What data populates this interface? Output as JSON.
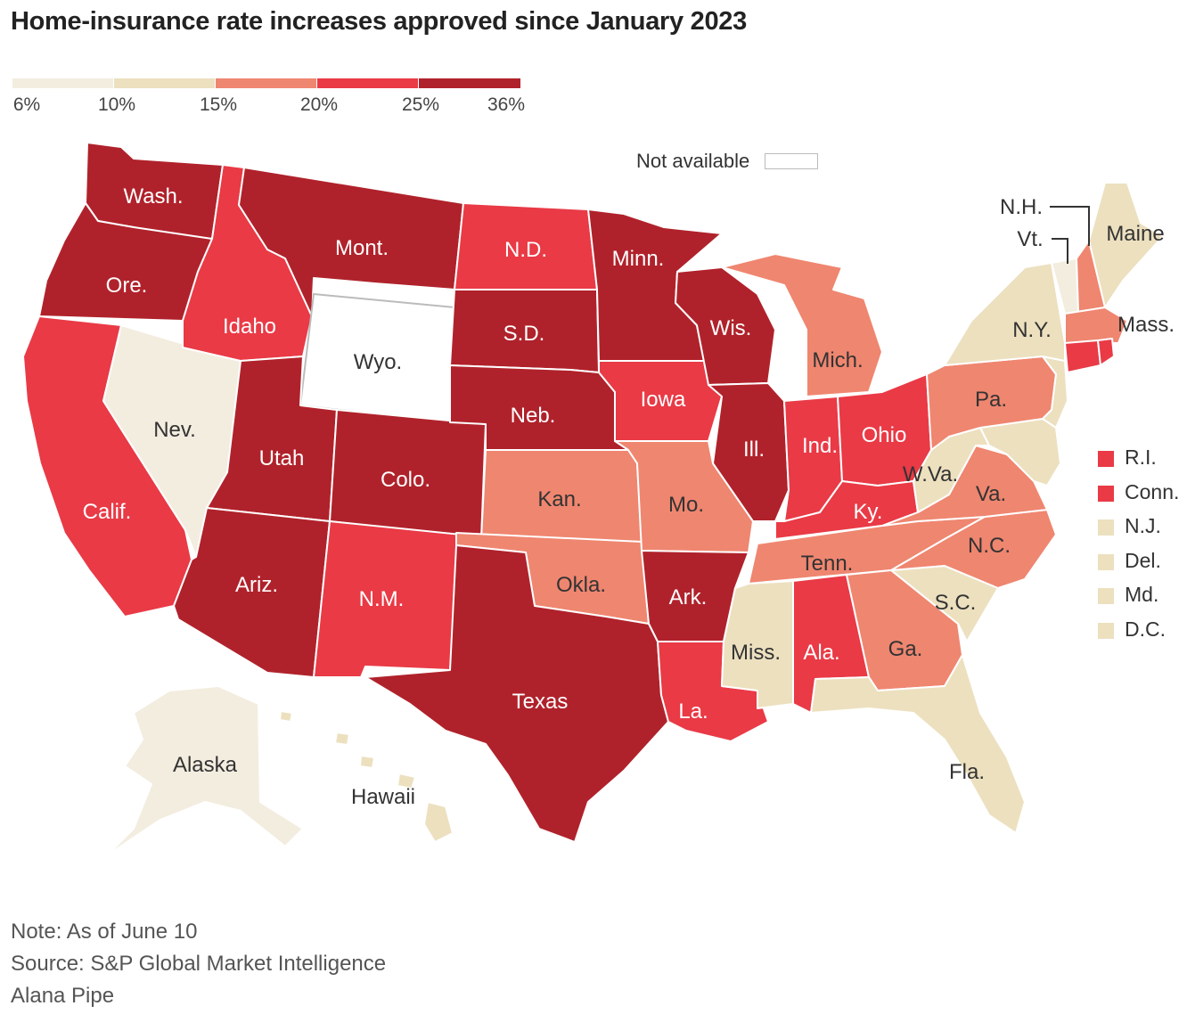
{
  "title": "Home-insurance rate increases approved since January 2023",
  "legend": {
    "bins": [
      {
        "from": "6%",
        "to": "10%",
        "color": "#f3ede0"
      },
      {
        "from": "10%",
        "to": "15%",
        "color": "#ece0bf"
      },
      {
        "from": "15%",
        "to": "20%",
        "color": "#ef8670"
      },
      {
        "from": "20%",
        "to": "25%",
        "color": "#e93a46"
      },
      {
        "from": "25%",
        "to": "36%",
        "color": "#b0222b"
      }
    ],
    "ticks": [
      "6%",
      "10%",
      "15%",
      "20%",
      "25%",
      "36%"
    ],
    "not_available_label": "Not available"
  },
  "states": {
    "wash": "Wash.",
    "ore": "Ore.",
    "calif": "Calif.",
    "idaho": "Idaho",
    "nev": "Nev.",
    "mont": "Mont.",
    "wyo": "Wyo.",
    "utah": "Utah",
    "ariz": "Ariz.",
    "colo": "Colo.",
    "nm": "N.M.",
    "nd": "N.D.",
    "sd": "S.D.",
    "neb": "Neb.",
    "kan": "Kan.",
    "okla": "Okla.",
    "texas": "Texas",
    "minn": "Minn.",
    "iowa": "Iowa",
    "mo": "Mo.",
    "ark": "Ark.",
    "la": "La.",
    "wis": "Wis.",
    "ill": "Ill.",
    "mich": "Mich.",
    "ind": "Ind.",
    "ohio": "Ohio",
    "ky": "Ky.",
    "tenn": "Tenn.",
    "miss": "Miss.",
    "ala": "Ala.",
    "ga": "Ga.",
    "fla": "Fla.",
    "sc": "S.C.",
    "nc": "N.C.",
    "va": "Va.",
    "wva": "W.Va.",
    "pa": "Pa.",
    "ny": "N.Y.",
    "maine": "Maine",
    "mass": "Mass.",
    "nh": "N.H.",
    "vt": "Vt.",
    "alaska": "Alaska",
    "hawaii": "Hawaii"
  },
  "small_states": [
    {
      "label": "R.I.",
      "color": "#e93a46"
    },
    {
      "label": "Conn.",
      "color": "#e93a46"
    },
    {
      "label": "N.J.",
      "color": "#ece0bf"
    },
    {
      "label": "Del.",
      "color": "#ece0bf"
    },
    {
      "label": "Md.",
      "color": "#ece0bf"
    },
    {
      "label": "D.C.",
      "color": "#ece0bf"
    }
  ],
  "notes": {
    "note": "Note: As of June 10",
    "source": "Source: S&P Global Market Intelligence",
    "credit": "Alana Pipe"
  }
}
